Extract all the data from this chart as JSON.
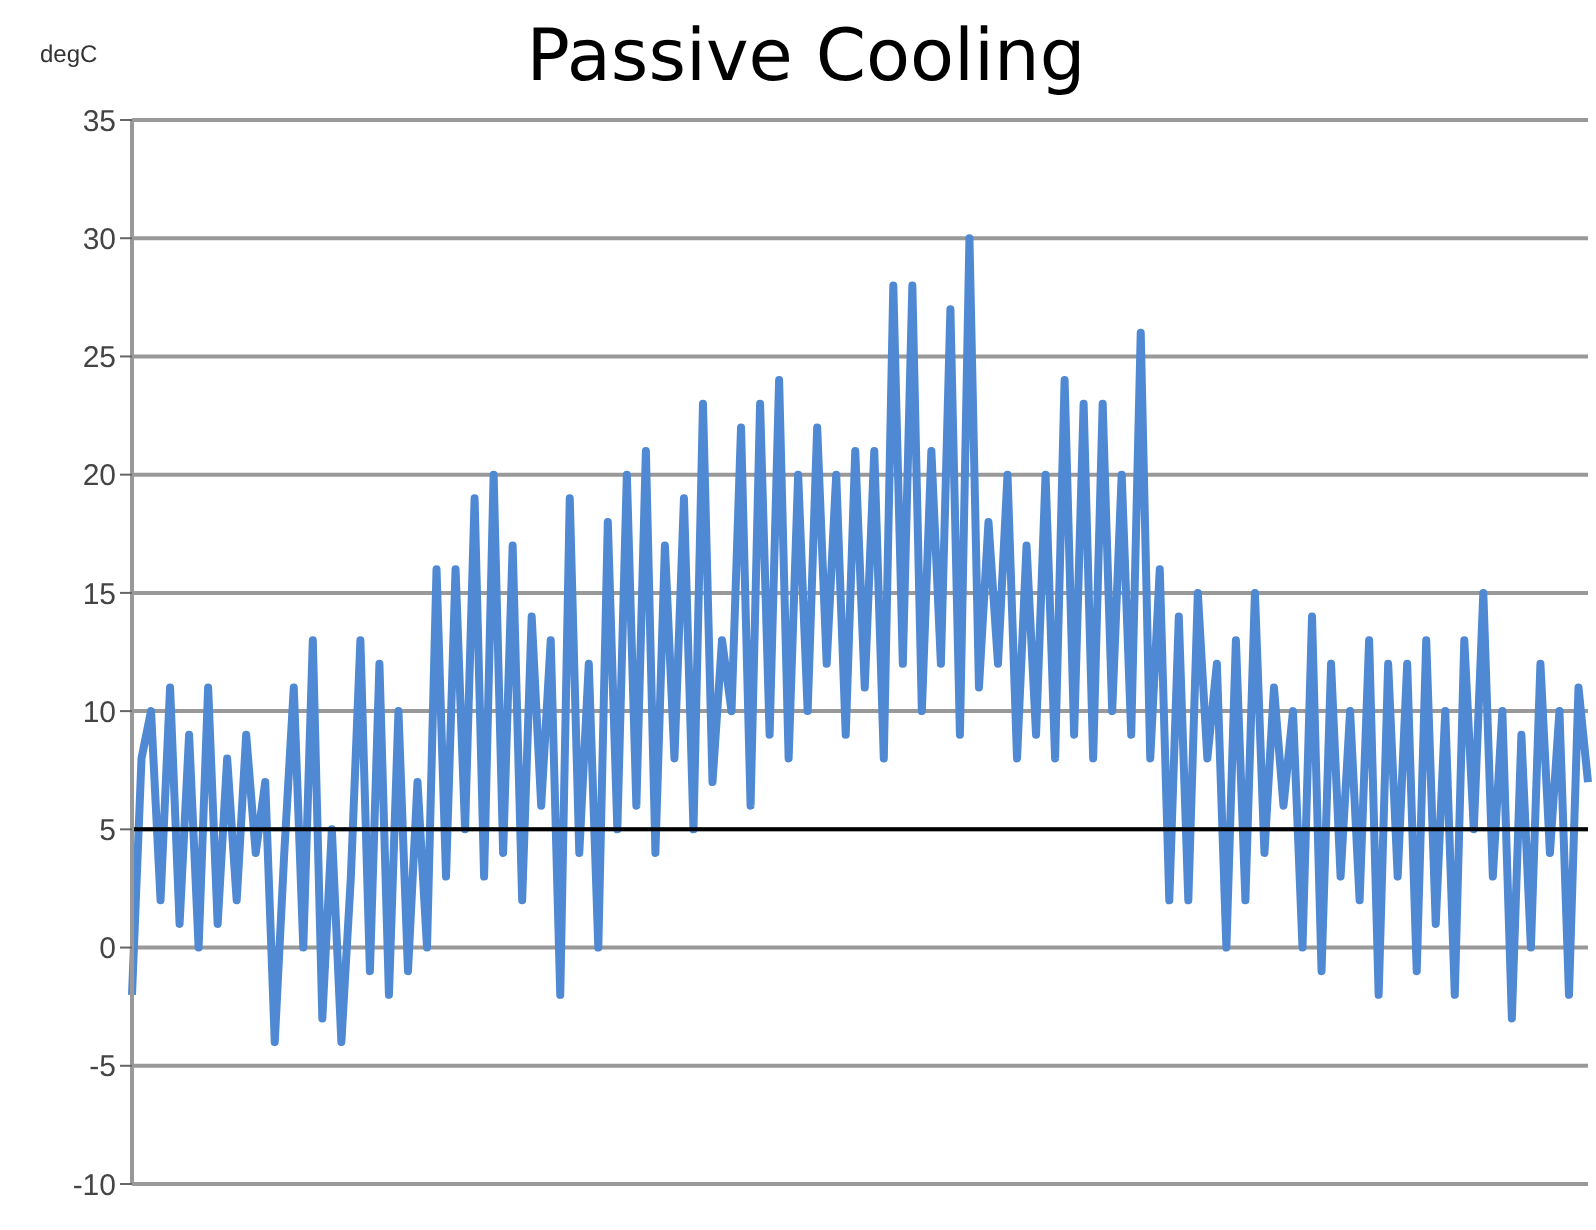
{
  "chart_data": {
    "type": "line",
    "title": "Passive Cooling",
    "ylabel": "degC",
    "categories": [
      null,
      null,
      null,
      null,
      null,
      null,
      null,
      null,
      null,
      null,
      null,
      null,
      null,
      null,
      null,
      null,
      null,
      null,
      null,
      null,
      null,
      null,
      null,
      null,
      null,
      null,
      null,
      null,
      null,
      null,
      null,
      null,
      null,
      null,
      null,
      null,
      null,
      null,
      null,
      null,
      null,
      null,
      null,
      null,
      null,
      null,
      null,
      null,
      null,
      null,
      null,
      null,
      null,
      null,
      null,
      null,
      null,
      null,
      null,
      null,
      null,
      null,
      null,
      null,
      null,
      null,
      null,
      null,
      null,
      null,
      null,
      null,
      null,
      null,
      null,
      null,
      null,
      null,
      null,
      null,
      null,
      null,
      null,
      null,
      null,
      null,
      null,
      null,
      null,
      null,
      null,
      null,
      null,
      null,
      null,
      null,
      null,
      null,
      null,
      null,
      null,
      null,
      null,
      null,
      null,
      null,
      null,
      null,
      null,
      null,
      null,
      null,
      null,
      null,
      null,
      null,
      null,
      null,
      null,
      null,
      null,
      null,
      null,
      null,
      null,
      null,
      null,
      null,
      null,
      null,
      null,
      null,
      null,
      null,
      null,
      null,
      null,
      null,
      null,
      null,
      null,
      null,
      null,
      null,
      null,
      null,
      null,
      null,
      null,
      null,
      null,
      null,
      null,
      null
    ],
    "series": [
      {
        "color": "#4f88d3",
        "values": [
          -2,
          8,
          10,
          2,
          11,
          1,
          9,
          0,
          11,
          1,
          8,
          2,
          9,
          4,
          7,
          -4,
          4,
          11,
          0,
          13,
          -3,
          5,
          -4,
          3,
          13,
          -1,
          12,
          -2,
          10,
          -1,
          7,
          0,
          16,
          3,
          16,
          5,
          19,
          3,
          20,
          4,
          17,
          2,
          14,
          6,
          13,
          -2,
          19,
          4,
          12,
          0,
          18,
          5,
          20,
          6,
          21,
          4,
          17,
          8,
          19,
          5,
          23,
          7,
          13,
          10,
          22,
          6,
          23,
          9,
          24,
          8,
          20,
          10,
          22,
          12,
          20,
          9,
          21,
          11,
          21,
          8,
          28,
          12,
          28,
          10,
          21,
          12,
          27,
          9,
          30,
          11,
          18,
          12,
          20,
          8,
          17,
          9,
          20,
          8,
          24,
          9,
          23,
          8,
          23,
          10,
          20,
          9,
          26,
          8,
          16,
          2,
          14,
          2,
          15,
          8,
          12,
          0,
          13,
          2,
          15,
          4,
          11,
          6,
          10,
          0,
          14,
          -1,
          12,
          3,
          10,
          2,
          13,
          -2,
          12,
          3,
          12,
          -1,
          13,
          1,
          10,
          -2,
          13,
          5,
          15,
          3,
          10,
          -3,
          9,
          0,
          12,
          4,
          10,
          -2,
          11,
          7
        ]
      }
    ],
    "ylim": [
      -10,
      35
    ],
    "yticks": [
      -10,
      -5,
      0,
      5,
      10,
      15,
      20,
      25,
      30,
      35
    ],
    "grid": "y",
    "marker": "none",
    "line_style": "solid",
    "ref_lines": [
      {
        "axis": "y",
        "value": 5,
        "color": "#000000"
      }
    ]
  }
}
